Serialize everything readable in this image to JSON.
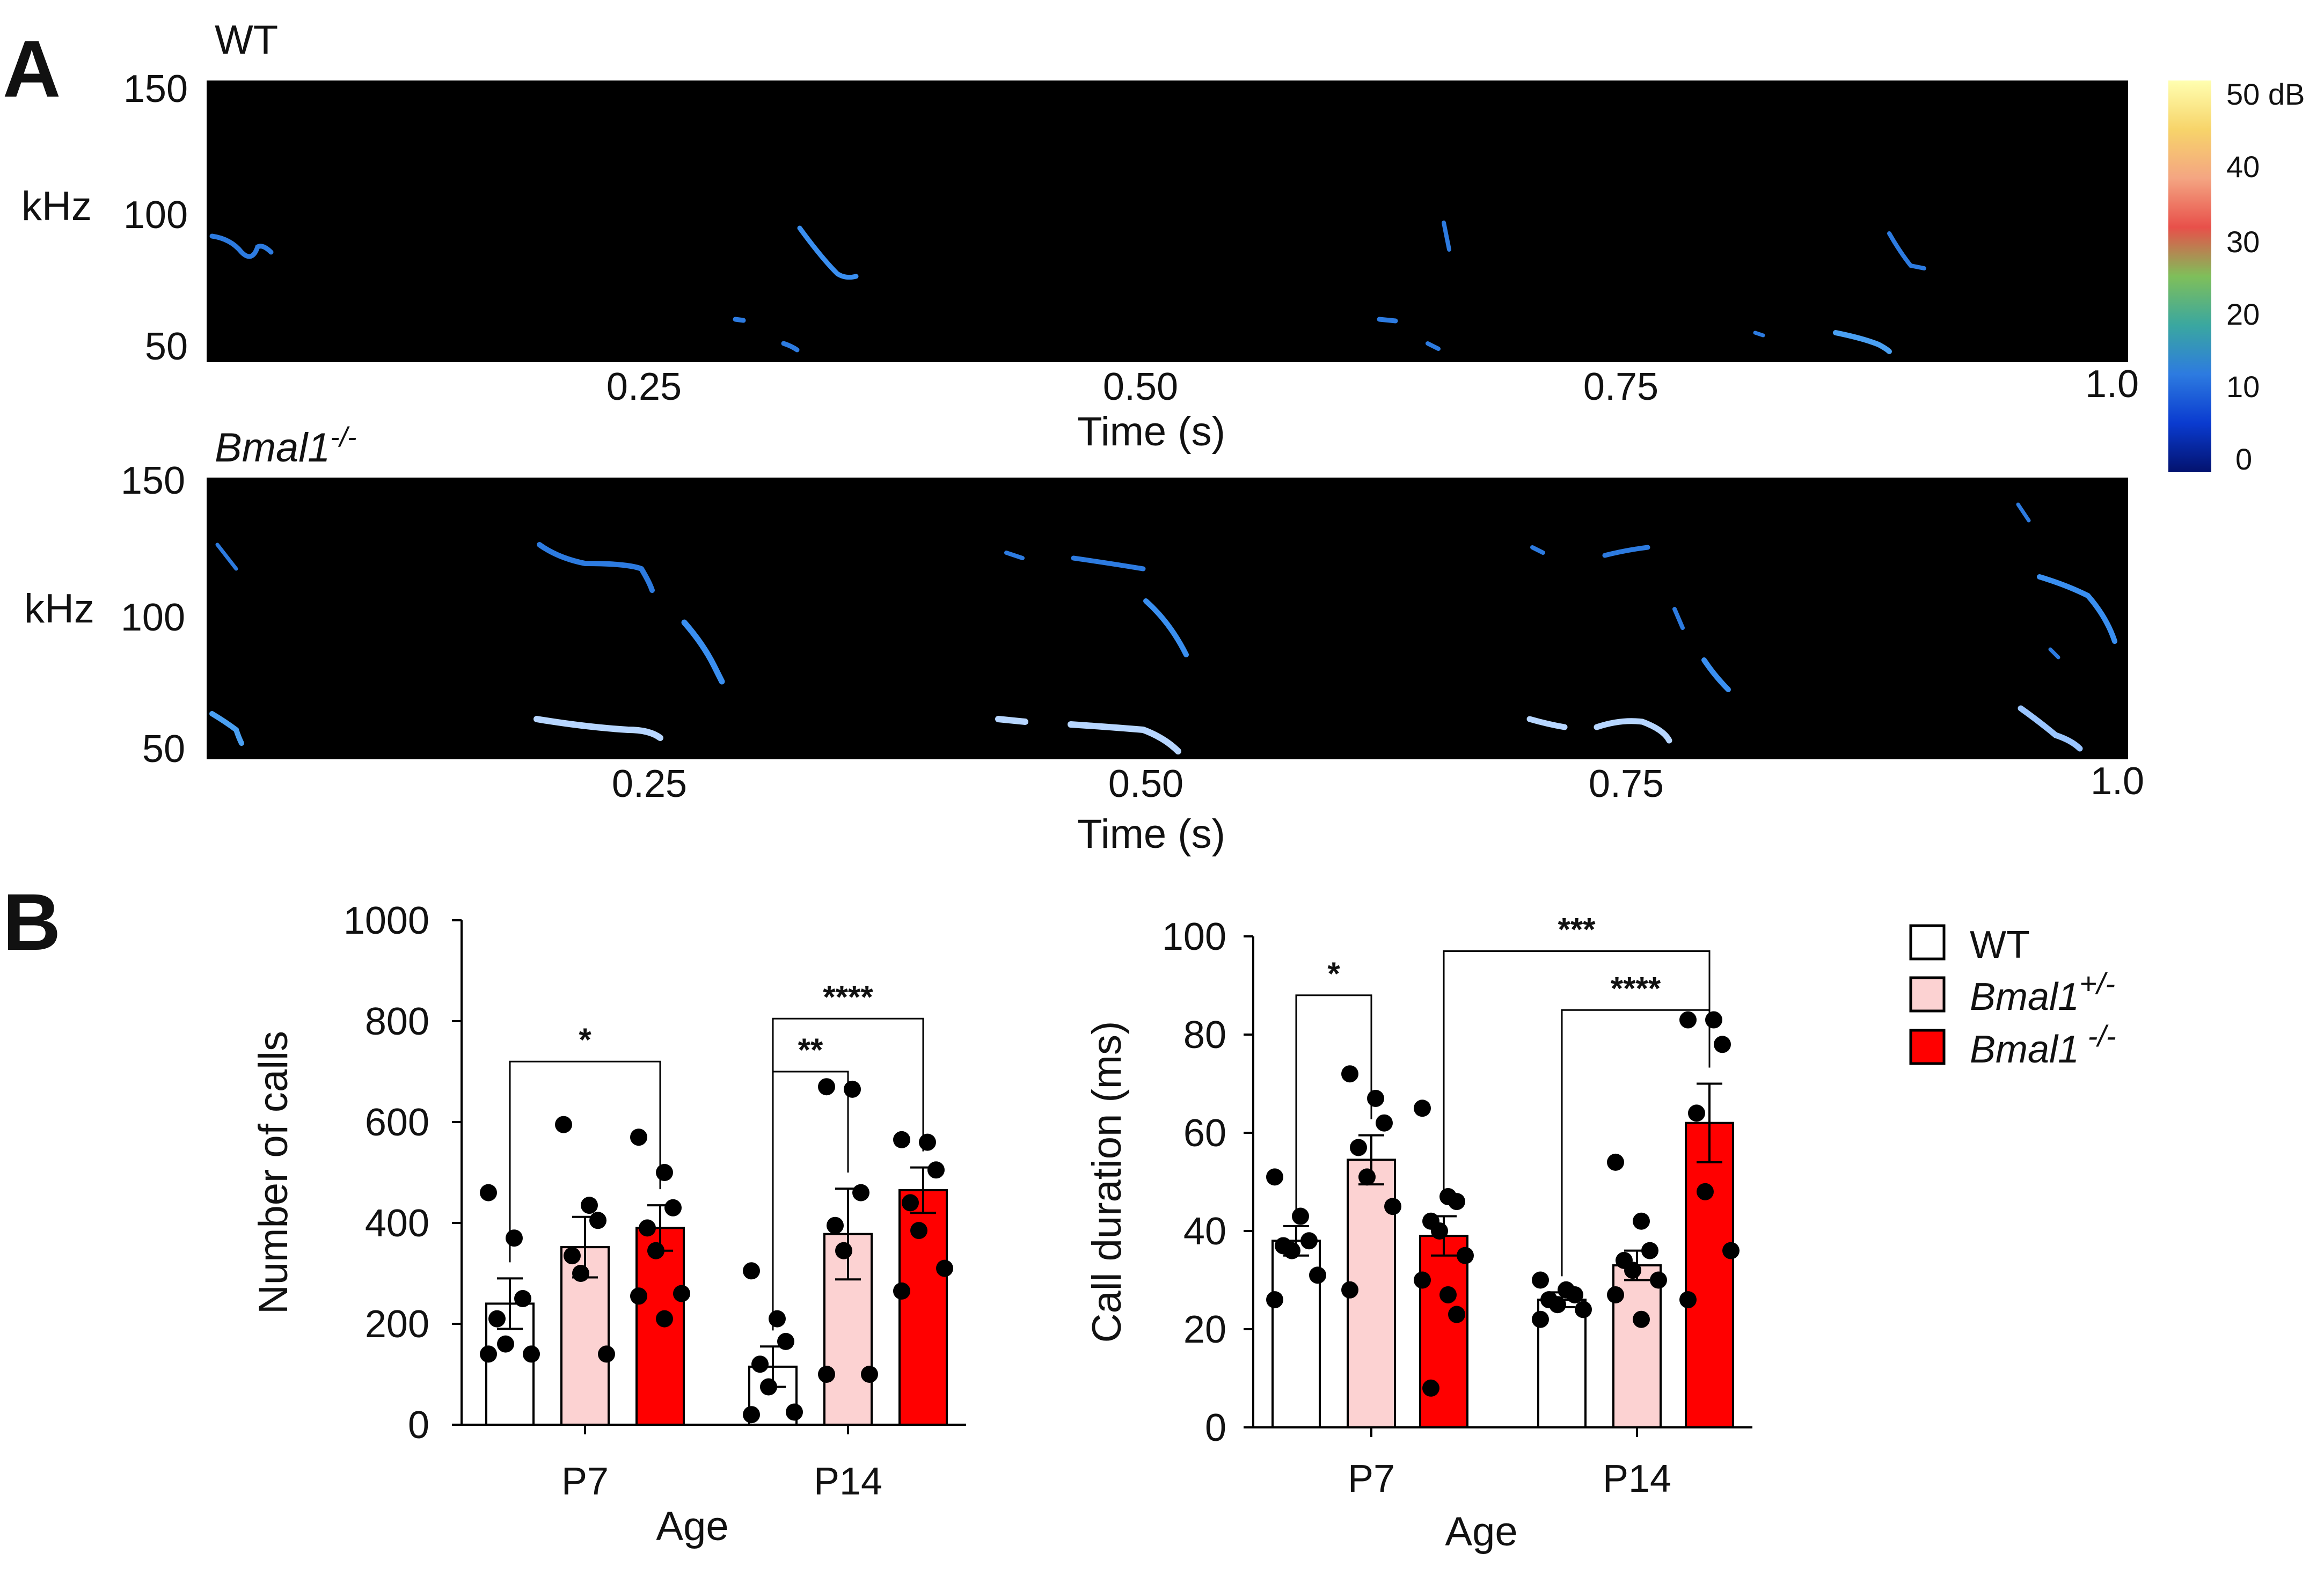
{
  "panel_a": {
    "letter": "A",
    "colorbar": {
      "ticks": [
        "50 dB",
        "40",
        "30",
        "20",
        "10",
        "0"
      ],
      "colors": [
        "#ffffb0",
        "#f7d46a",
        "#f4a582",
        "#e8504a",
        "#7fbf5a",
        "#3aa7a0",
        "#2d7be0",
        "#0a3bd0",
        "#03126e"
      ]
    },
    "spectrograms": [
      {
        "label": "WT",
        "label_italic": false,
        "superscript": "",
        "ylabel": "kHz",
        "yticks": [
          "150",
          "100",
          "50"
        ],
        "xticks": [
          "0.25",
          "0.50",
          "0.75",
          "1.0"
        ],
        "xlabel": "Time (s)"
      },
      {
        "label": "Bmal1",
        "label_italic": true,
        "superscript": "-/-",
        "ylabel": "kHz",
        "yticks": [
          "150",
          "100",
          "50"
        ],
        "xticks": [
          "0.25",
          "0.50",
          "0.75",
          "1.0"
        ],
        "xlabel": "Time (s)"
      }
    ]
  },
  "panel_b": {
    "letter": "B",
    "legend": [
      {
        "name": "WT",
        "sup": "",
        "italic": false,
        "color": "#ffffff"
      },
      {
        "name": "Bmal1",
        "sup": "+/-",
        "italic": true,
        "color": "#fcd2d2"
      },
      {
        "name": "Bmal1",
        "sup": " -/-",
        "italic": true,
        "color": "#ff0000"
      }
    ]
  },
  "chart_data": [
    {
      "type": "bar",
      "xlabel": "Age",
      "ylabel": "Number of calls",
      "ylim": [
        0,
        1000
      ],
      "yticks": [
        0,
        200,
        400,
        600,
        800,
        1000
      ],
      "categories": [
        "P7",
        "P14"
      ],
      "series": [
        {
          "name": "WT",
          "means": [
            240,
            115
          ],
          "sem": [
            50,
            40
          ],
          "points": [
            [
              460,
              370,
              250,
              210,
              160,
              140,
              140
            ],
            [
              305,
              210,
              165,
              120,
              75,
              25,
              20
            ]
          ]
        },
        {
          "name": "Bmal1+/-",
          "means": [
            352,
            378
          ],
          "sem": [
            60,
            90
          ],
          "points": [
            [
              595,
              435,
              405,
              335,
              300,
              140
            ],
            [
              670,
              665,
              460,
              395,
              345,
              100,
              100
            ]
          ]
        },
        {
          "name": "Bmal1-/-",
          "means": [
            390,
            465
          ],
          "sem": [
            45,
            45
          ],
          "points": [
            [
              570,
              500,
              430,
              390,
              345,
              260,
              255,
              210
            ],
            [
              565,
              560,
              505,
              440,
              385,
              310,
              265
            ]
          ]
        }
      ],
      "significance": [
        {
          "label": "*",
          "group_from": [
            0,
            0
          ],
          "group_to": [
            0,
            2
          ],
          "y": 720
        },
        {
          "label": "**",
          "group_from": [
            1,
            0
          ],
          "group_to": [
            1,
            1
          ],
          "y": 700
        },
        {
          "label": "****",
          "group_from": [
            1,
            0
          ],
          "group_to": [
            1,
            2
          ],
          "y": 805
        }
      ]
    },
    {
      "type": "bar",
      "xlabel": "Age",
      "ylabel": "Call duration (ms)",
      "ylim": [
        0,
        100
      ],
      "yticks": [
        0,
        20,
        40,
        60,
        80,
        100
      ],
      "categories": [
        "P7",
        "P14"
      ],
      "series": [
        {
          "name": "WT",
          "means": [
            38,
            26
          ],
          "sem": [
            3,
            1.5
          ],
          "points": [
            [
              51,
              43,
              38,
              37,
              36,
              31,
              26
            ],
            [
              30,
              28,
              27,
              26,
              25,
              24,
              22
            ]
          ]
        },
        {
          "name": "Bmal1+/-",
          "means": [
            54.5,
            33
          ],
          "sem": [
            5,
            3
          ],
          "points": [
            [
              72,
              67,
              62,
              57,
              51,
              45,
              28
            ],
            [
              54,
              42,
              36,
              34,
              32,
              30,
              27,
              22
            ]
          ]
        },
        {
          "name": "Bmal1-/-",
          "means": [
            39,
            62
          ],
          "sem": [
            4,
            8
          ],
          "points": [
            [
              65,
              47,
              46,
              42,
              40,
              35,
              30,
              27,
              23,
              8
            ],
            [
              83,
              83,
              78,
              64,
              48,
              36,
              26
            ]
          ]
        }
      ],
      "significance": [
        {
          "label": "*",
          "group_from": [
            0,
            0
          ],
          "group_to": [
            0,
            1
          ],
          "y": 88
        },
        {
          "label": "****",
          "group_from": [
            1,
            0
          ],
          "group_to": [
            1,
            2
          ],
          "y": 85
        },
        {
          "label": "***",
          "group_from": [
            0,
            2
          ],
          "group_to": [
            1,
            2
          ],
          "y": 97
        }
      ]
    }
  ]
}
